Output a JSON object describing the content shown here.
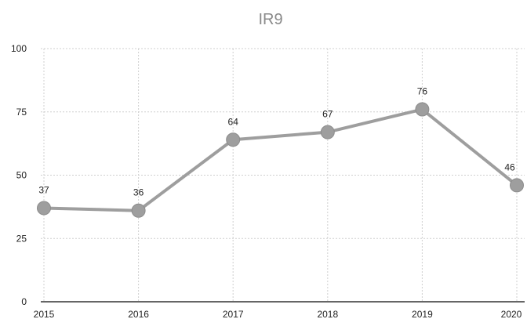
{
  "chart_data": {
    "type": "line",
    "title": "IR9",
    "xlabel": "",
    "ylabel": "",
    "categories": [
      "2015",
      "2016",
      "2017",
      "2018",
      "2019",
      "2020"
    ],
    "series": [
      {
        "values": [
          37,
          36,
          64,
          67,
          76,
          46
        ],
        "data_labels": [
          "37",
          "36",
          "64",
          "67",
          "76",
          "46"
        ],
        "color": "#9e9e9e"
      }
    ],
    "ylim": [
      0,
      100
    ],
    "y_ticks": [
      0,
      25,
      50,
      75,
      100
    ],
    "y_tick_labels": [
      "0",
      "25",
      "50",
      "75",
      "100"
    ],
    "grid": true,
    "legend": "none"
  }
}
